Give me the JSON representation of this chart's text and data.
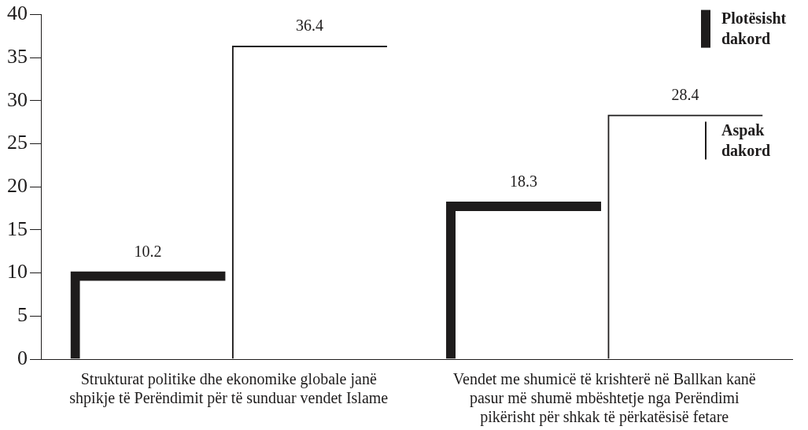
{
  "chart_data": {
    "type": "bar",
    "categories": [
      "Strukturat politike dhe ekonomike globale janë shpikje të Perëndimit për të sunduar vendet Islame",
      "Vendet me shumicë të krishterë në Ballkan kanë pasur më shumë mbështetje nga Perëndimi pikërisht për shkak të përkatësisë fetare"
    ],
    "series": [
      {
        "name": "Plotësisht dakord",
        "color": "#1e1c1c",
        "values": [
          10.2,
          18.3
        ]
      },
      {
        "name": "Aspak dakord",
        "color": "#1e1c1c",
        "values": [
          36.4,
          28.4
        ]
      }
    ],
    "ylim": [
      0,
      40
    ],
    "yticks": [
      0,
      5,
      10,
      15,
      20,
      25,
      30,
      35,
      40
    ],
    "data_labels": true,
    "legend": "top right",
    "grid": false
  }
}
